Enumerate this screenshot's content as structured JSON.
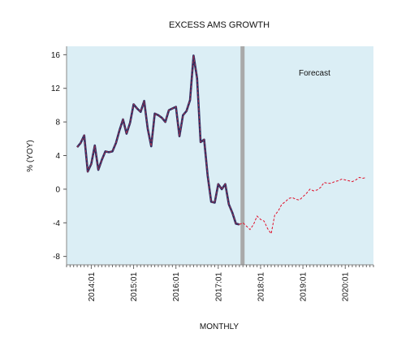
{
  "chart_data": {
    "type": "line",
    "title": "EXCESS AMS GROWTH",
    "xlabel": "MONTHLY",
    "ylabel": "% (YOY)",
    "annotation": "Forecast",
    "ylim": [
      -9,
      17
    ],
    "yticks": [
      -8,
      -4,
      0,
      4,
      8,
      12,
      16
    ],
    "xlim": [
      "2013-06",
      "2020-09"
    ],
    "xticks": [
      "2014:01",
      "2015:01",
      "2016:01",
      "2017:01",
      "2018:01",
      "2019:01",
      "2020:01"
    ],
    "forecast_start": "2017-08",
    "grid": false,
    "colors": {
      "plot_background": "#dbeef5",
      "history_line": "#2f2f63",
      "history_overlay": "#b0304a",
      "forecast_line": "#e0102a",
      "forecast_marker": "#a9a9a9"
    },
    "series": [
      {
        "role": "history",
        "x": [
          "2013-09",
          "2013-10",
          "2013-11",
          "2013-12",
          "2014-01",
          "2014-02",
          "2014-03",
          "2014-04",
          "2014-05",
          "2014-06",
          "2014-07",
          "2014-08",
          "2014-09",
          "2014-10",
          "2014-11",
          "2014-12",
          "2015-01",
          "2015-02",
          "2015-03",
          "2015-04",
          "2015-05",
          "2015-06",
          "2015-07",
          "2015-08",
          "2015-09",
          "2015-10",
          "2015-11",
          "2015-12",
          "2016-01",
          "2016-02",
          "2016-03",
          "2016-04",
          "2016-05",
          "2016-06",
          "2016-07",
          "2016-08",
          "2016-09",
          "2016-10",
          "2016-11",
          "2016-12",
          "2017-01",
          "2017-02",
          "2017-03",
          "2017-04",
          "2017-05",
          "2017-06",
          "2017-07"
        ],
        "values": [
          5.0,
          5.5,
          6.4,
          2.1,
          3.0,
          5.2,
          2.3,
          3.5,
          4.5,
          4.4,
          4.5,
          5.5,
          7.0,
          8.3,
          6.6,
          7.9,
          10.1,
          9.6,
          9.2,
          10.5,
          7.2,
          5.1,
          9.0,
          8.8,
          8.5,
          8.0,
          9.4,
          9.6,
          9.8,
          6.3,
          8.8,
          9.3,
          10.6,
          15.9,
          13.2,
          5.6,
          5.9,
          1.6,
          -1.5,
          -1.6,
          0.6,
          0.0,
          0.6,
          -1.8,
          -2.8,
          -4.1,
          -4.2
        ]
      },
      {
        "role": "forecast",
        "x": [
          "2017-08",
          "2017-09",
          "2017-10",
          "2017-11",
          "2017-12",
          "2018-01",
          "2018-02",
          "2018-03",
          "2018-04",
          "2018-05",
          "2018-06",
          "2018-07",
          "2018-08",
          "2018-09",
          "2018-10",
          "2018-11",
          "2018-12",
          "2019-01",
          "2019-02",
          "2019-03",
          "2019-04",
          "2019-05",
          "2019-06",
          "2019-07",
          "2019-08",
          "2019-09",
          "2019-10",
          "2019-11",
          "2019-12",
          "2020-01",
          "2020-02",
          "2020-03",
          "2020-04",
          "2020-05",
          "2020-06",
          "2020-07"
        ],
        "values": [
          -4.0,
          -4.4,
          -4.8,
          -4.2,
          -3.2,
          -3.6,
          -3.8,
          -4.7,
          -5.3,
          -3.1,
          -2.6,
          -1.8,
          -1.5,
          -1.1,
          -1.0,
          -1.2,
          -1.3,
          -0.9,
          -0.5,
          0.0,
          -0.2,
          -0.1,
          0.2,
          0.8,
          0.7,
          0.7,
          0.9,
          1.0,
          1.2,
          1.1,
          1.0,
          0.9,
          1.1,
          1.4,
          1.3,
          1.4
        ]
      }
    ]
  }
}
